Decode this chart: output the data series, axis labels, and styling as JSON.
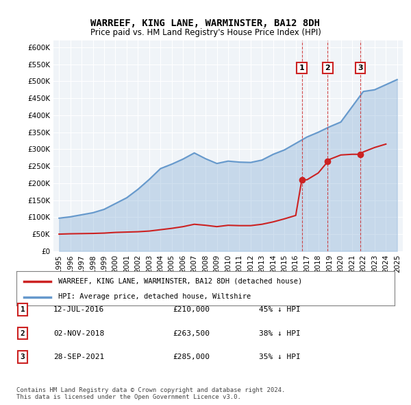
{
  "title": "WARREEF, KING LANE, WARMINSTER, BA12 8DH",
  "subtitle": "Price paid vs. HM Land Registry's House Price Index (HPI)",
  "ylabel_ticks": [
    "£0",
    "£50K",
    "£100K",
    "£150K",
    "£200K",
    "£250K",
    "£300K",
    "£350K",
    "£400K",
    "£450K",
    "£500K",
    "£550K",
    "£600K"
  ],
  "ytick_values": [
    0,
    50000,
    100000,
    150000,
    200000,
    250000,
    300000,
    350000,
    400000,
    450000,
    500000,
    550000,
    600000
  ],
  "ylim": [
    0,
    620000
  ],
  "xlim_start": 1994.5,
  "xlim_end": 2025.5,
  "hpi_color": "#6699cc",
  "price_color": "#cc2222",
  "hpi_line": {
    "x": [
      1995,
      1996,
      1997,
      1998,
      1999,
      2000,
      2001,
      2002,
      2003,
      2004,
      2005,
      2006,
      2007,
      2008,
      2009,
      2010,
      2011,
      2012,
      2013,
      2014,
      2015,
      2016,
      2017,
      2018,
      2019,
      2020,
      2021,
      2022,
      2023,
      2024,
      2025
    ],
    "y": [
      97000,
      101000,
      107000,
      113000,
      123000,
      140000,
      157000,
      182000,
      211000,
      243000,
      256000,
      271000,
      289000,
      272000,
      258000,
      265000,
      262000,
      261000,
      268000,
      285000,
      298000,
      317000,
      336000,
      350000,
      366000,
      380000,
      425000,
      470000,
      475000,
      490000,
      505000
    ]
  },
  "price_line": {
    "x": [
      1995,
      1996,
      1997,
      1998,
      1999,
      2000,
      2001,
      2002,
      2003,
      2004,
      2005,
      2006,
      2007,
      2008,
      2009,
      2010,
      2011,
      2012,
      2013,
      2014,
      2015,
      2016,
      2016.54,
      2017,
      2018,
      2018.84,
      2019,
      2020,
      2021,
      2021.74,
      2022,
      2023,
      2024
    ],
    "y": [
      50000,
      51000,
      51500,
      52000,
      53000,
      55000,
      56000,
      57000,
      59000,
      63000,
      67000,
      72000,
      79000,
      76000,
      72000,
      76000,
      75000,
      75000,
      79000,
      86000,
      95000,
      105000,
      210000,
      210000,
      230000,
      263500,
      270000,
      283000,
      285000,
      285000,
      292000,
      305000,
      315000
    ]
  },
  "transactions": [
    {
      "label": "1",
      "date": "12-JUL-2016",
      "price": 210000,
      "x": 2016.54,
      "pct": "45%",
      "direction": "↓"
    },
    {
      "label": "2",
      "date": "02-NOV-2018",
      "price": 263500,
      "x": 2018.84,
      "pct": "38%",
      "direction": "↓"
    },
    {
      "label": "3",
      "date": "28-SEP-2021",
      "price": 285000,
      "x": 2021.74,
      "pct": "35%",
      "direction": "↓"
    }
  ],
  "legend_entries": [
    "WARREEF, KING LANE, WARMINSTER, BA12 8DH (detached house)",
    "HPI: Average price, detached house, Wiltshire"
  ],
  "footer": "Contains HM Land Registry data © Crown copyright and database right 2024.\nThis data is licensed under the Open Government Licence v3.0.",
  "bg_color": "#ffffff",
  "plot_bg_color": "#f0f4f8",
  "marker_box_color": "#cc2222",
  "dashed_line_color": "#cc2222"
}
